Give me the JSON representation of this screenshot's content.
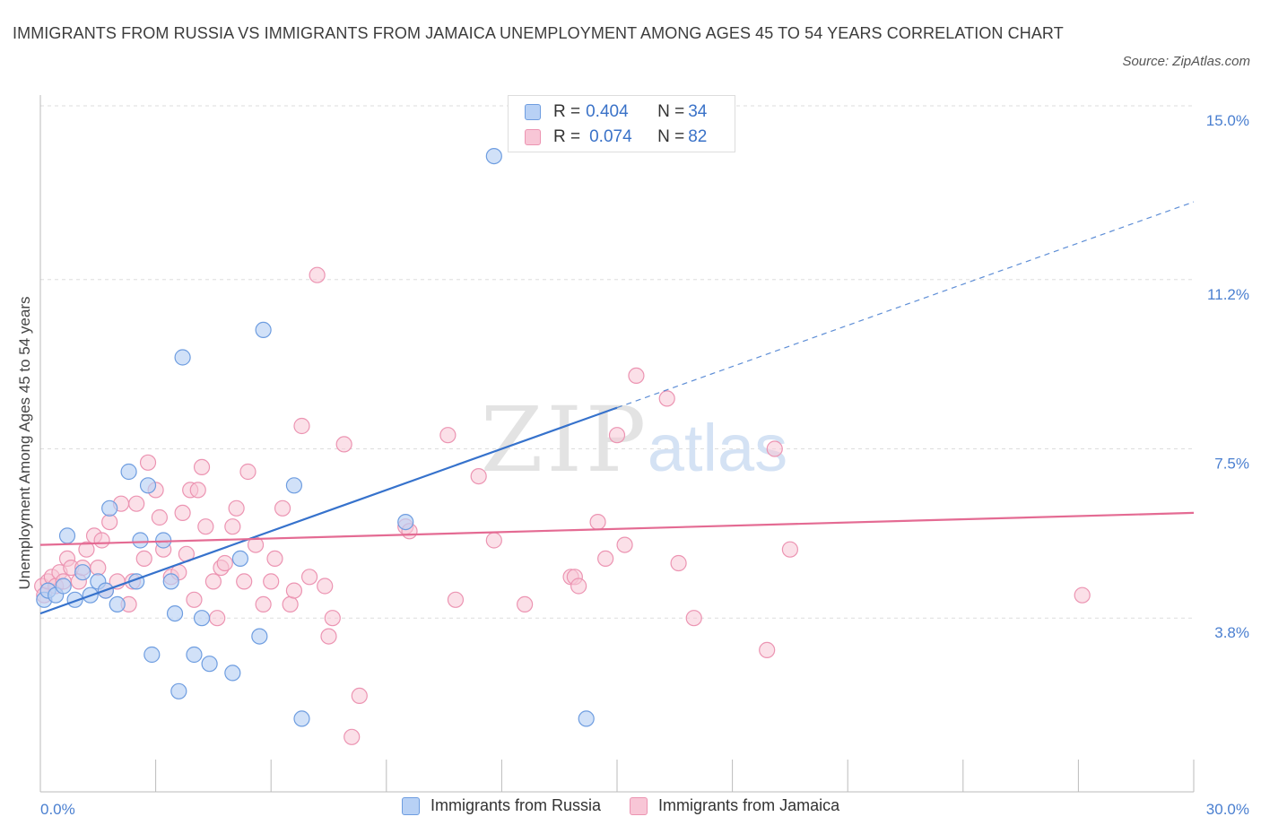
{
  "title": "IMMIGRANTS FROM RUSSIA VS IMMIGRANTS FROM JAMAICA UNEMPLOYMENT AMONG AGES 45 TO 54 YEARS CORRELATION CHART",
  "source": "Source: ZipAtlas.com",
  "watermark": {
    "zip": "ZIP",
    "atlas": "atlas"
  },
  "legend_top": {
    "rows": [
      {
        "r_label": "R = ",
        "r_value": "0.404",
        "n_label": "N = ",
        "n_value": "34"
      },
      {
        "r_label": "R = ",
        "r_value": "0.074",
        "n_label": "N = ",
        "n_value": "82"
      }
    ]
  },
  "colors": {
    "russia_fill": "#b8d1f5",
    "russia_stroke": "#6e9de0",
    "russia_line": "#3672cc",
    "jamaica_fill": "#f8c6d6",
    "jamaica_stroke": "#ec94b2",
    "jamaica_line": "#e46b93",
    "axis_text": "#4a7fd0",
    "grid": "#dddddd"
  },
  "chart_data": {
    "type": "scatter",
    "title": "IMMIGRANTS FROM RUSSIA VS IMMIGRANTS FROM JAMAICA UNEMPLOYMENT AMONG AGES 45 TO 54 YEARS CORRELATION CHART",
    "xlabel": "",
    "ylabel": "Unemployment Among Ages 45 to 54 years",
    "xlim": [
      0,
      30
    ],
    "ylim": [
      0.0,
      15.0
    ],
    "x_tick_labels": [
      "0.0%",
      "30.0%"
    ],
    "y_ticks": [
      3.8,
      7.5,
      11.2,
      15.0
    ],
    "y_tick_labels": [
      "3.8%",
      "7.5%",
      "11.2%",
      "15.0%"
    ],
    "grid": true,
    "legend_placement": "bottom",
    "series": [
      {
        "name": "Immigrants from Russia",
        "x": [
          0.1,
          0.2,
          0.4,
          0.6,
          0.7,
          0.9,
          1.1,
          1.3,
          1.5,
          1.7,
          1.8,
          2.0,
          2.3,
          2.5,
          2.6,
          2.8,
          2.9,
          3.2,
          3.4,
          3.5,
          3.6,
          3.7,
          4.0,
          4.2,
          4.4,
          5.0,
          5.2,
          5.7,
          5.8,
          6.6,
          6.8,
          9.5,
          11.8,
          14.2
        ],
        "y": [
          4.2,
          4.4,
          4.3,
          4.5,
          5.6,
          4.2,
          4.8,
          4.3,
          4.6,
          4.4,
          6.2,
          4.1,
          7.0,
          4.6,
          5.5,
          6.7,
          3.0,
          5.5,
          4.6,
          3.9,
          2.2,
          9.5,
          3.0,
          3.8,
          2.8,
          2.6,
          5.1,
          3.4,
          10.1,
          6.7,
          1.6,
          5.9,
          13.9,
          1.6
        ],
        "trend": {
          "x0": 0,
          "y0": 3.9,
          "x1": 15,
          "y1": 8.4,
          "dash_to_x": 30,
          "dash_to_y": 12.9
        }
      },
      {
        "name": "Immigrants from Jamaica",
        "x": [
          0.05,
          0.1,
          0.2,
          0.3,
          0.4,
          0.5,
          0.6,
          0.7,
          0.8,
          1.0,
          1.1,
          1.2,
          1.4,
          1.5,
          1.6,
          1.7,
          1.8,
          2.0,
          2.1,
          2.3,
          2.4,
          2.5,
          2.7,
          2.8,
          3.0,
          3.1,
          3.2,
          3.4,
          3.6,
          3.7,
          3.8,
          3.9,
          4.0,
          4.1,
          4.2,
          4.3,
          4.5,
          4.6,
          4.7,
          4.8,
          5.0,
          5.1,
          5.3,
          5.4,
          5.6,
          5.8,
          6.0,
          6.1,
          6.3,
          6.5,
          6.6,
          6.8,
          7.0,
          7.2,
          7.4,
          7.5,
          7.6,
          7.9,
          8.1,
          8.3,
          9.5,
          9.6,
          10.6,
          10.8,
          11.4,
          11.8,
          12.6,
          13.8,
          13.9,
          14.0,
          14.5,
          14.7,
          15.0,
          15.2,
          15.5,
          16.3,
          16.6,
          17.0,
          18.9,
          19.1,
          19.5,
          27.1
        ],
        "y": [
          4.5,
          4.3,
          4.6,
          4.7,
          4.5,
          4.8,
          4.6,
          5.1,
          4.9,
          4.6,
          4.9,
          5.3,
          5.6,
          4.9,
          5.5,
          4.4,
          5.9,
          4.6,
          6.3,
          4.1,
          4.6,
          6.3,
          5.1,
          7.2,
          6.6,
          6.0,
          5.3,
          4.7,
          4.8,
          6.1,
          5.2,
          6.6,
          4.2,
          6.6,
          7.1,
          5.8,
          4.6,
          3.8,
          4.9,
          5.0,
          5.8,
          6.2,
          4.6,
          7.0,
          5.4,
          4.1,
          4.6,
          5.1,
          6.2,
          4.1,
          4.4,
          8.0,
          4.7,
          11.3,
          4.5,
          3.4,
          3.8,
          7.6,
          1.2,
          2.1,
          5.8,
          5.7,
          7.8,
          4.2,
          6.9,
          5.5,
          4.1,
          4.7,
          4.7,
          4.5,
          5.9,
          5.1,
          7.8,
          5.4,
          9.1,
          8.6,
          5.0,
          3.8,
          3.1,
          7.5,
          5.3,
          4.3
        ],
        "trend": {
          "x0": 0,
          "y0": 5.4,
          "x1": 30,
          "y1": 6.1
        }
      }
    ]
  },
  "bottom_legend": {
    "items": [
      "Immigrants from Russia",
      "Immigrants from Jamaica"
    ]
  }
}
